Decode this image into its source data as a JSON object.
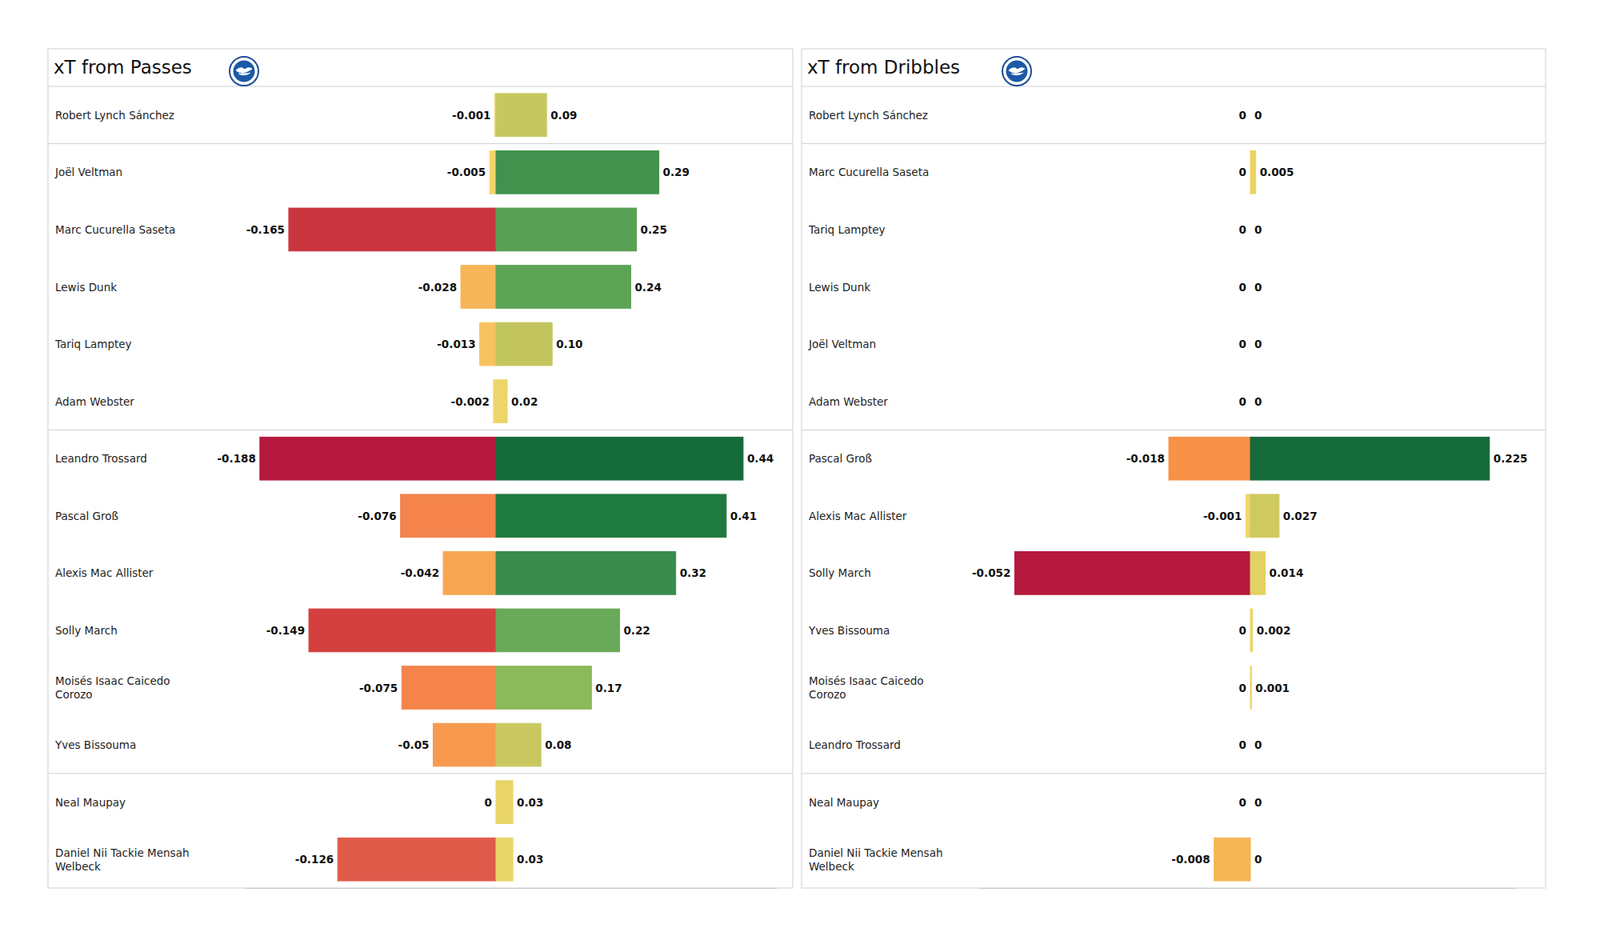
{
  "chart_data": [
    {
      "type": "bar",
      "title": "xT from Passes",
      "orientation": "horizontal",
      "data_labels": true,
      "tick_labels": false,
      "categories": [
        "Robert Lynch Sánchez",
        "Joël Veltman",
        "Marc Cucurella Saseta",
        "Lewis Dunk",
        "Tariq Lamptey",
        "Adam Webster",
        "Leandro Trossard",
        "Pascal Groß",
        "Alexis Mac Allister",
        "Solly March",
        "Moisés Isaac Caicedo Corozo",
        "Yves Bissouma",
        "Neal Maupay",
        "Daniel Nii Tackie Mensah Welbeck"
      ],
      "ylim": [
        0,
        0.5
      ],
      "y2lim": [
        -0.2,
        0
      ],
      "series": [
        {
          "axis": "y2",
          "values": [
            -0.001,
            -0.005,
            -0.165,
            -0.028,
            -0.013,
            -0.002,
            -0.188,
            -0.076,
            -0.042,
            -0.149,
            -0.075,
            -0.05,
            0,
            -0.126
          ],
          "colors": [
            "#f4d56a",
            "#f4d56a",
            "#c9353f",
            "#f6b558",
            "#f7c260",
            "#f4d56a",
            "#b5193e",
            "#f4844c",
            "#f6a650",
            "#d43f3f",
            "#f5844c",
            "#f79a50",
            "#f3d66a",
            "#e05a4a"
          ]
        },
        {
          "values": [
            0.09,
            0.29,
            0.25,
            0.24,
            0.1,
            0.02,
            0.44,
            0.41,
            0.32,
            0.22,
            0.17,
            0.08,
            0.03,
            0.03
          ],
          "value_labels": [
            "0.09",
            "0.29",
            "0.25",
            "0.24",
            "0.10",
            "0.02",
            "0.44",
            "0.41",
            "0.32",
            "0.22",
            "0.17",
            "0.08",
            "0.03",
            "0.03"
          ],
          "colors": [
            "#c6c75e",
            "#42924e",
            "#58a054",
            "#5da456",
            "#c2c55e",
            "#ecd56a",
            "#166b3a",
            "#1e7a3f",
            "#3b8b4c",
            "#68aa58",
            "#8cb95b",
            "#c9c860",
            "#e8d468",
            "#e8d468"
          ]
        }
      ]
    },
    {
      "type": "bar",
      "title": "xT from Dribbles",
      "orientation": "horizontal",
      "data_labels": true,
      "tick_labels": false,
      "categories": [
        "Robert Lynch Sánchez",
        "Marc Cucurella Saseta",
        "Tariq Lamptey",
        "Lewis Dunk",
        "Joël Veltman",
        "Adam Webster",
        "Pascal Groß",
        "Alexis Mac Allister",
        "Solly March",
        "Yves Bissouma",
        "Moisés Isaac Caicedo Corozo",
        "Leandro Trossard",
        "Neal Maupay",
        "Daniel Nii Tackie Mensah Welbeck"
      ],
      "ylim": [
        0,
        0.25
      ],
      "y2lim": [
        -0.06,
        0
      ],
      "series": [
        {
          "axis": "y2",
          "values": [
            0,
            0,
            0,
            0,
            0,
            0,
            -0.018,
            -0.001,
            -0.052,
            0,
            0,
            0,
            0,
            -0.008
          ],
          "colors": [
            "#f3d66a",
            "#f3d66a",
            "#f3d66a",
            "#f3d66a",
            "#f3d66a",
            "#f3d66a",
            "#f79248",
            "#f3d66a",
            "#b5193e",
            "#f3d66a",
            "#f3d66a",
            "#f3d66a",
            "#f3d66a",
            "#f6b653"
          ]
        },
        {
          "values": [
            0,
            0.005,
            0,
            0,
            0,
            0,
            0.225,
            0.027,
            0.014,
            0.002,
            0.001,
            0,
            0,
            0
          ],
          "colors": [
            "#edd466",
            "#ecd360",
            "#edd466",
            "#edd466",
            "#edd466",
            "#edd466",
            "#166b3a",
            "#cfca60",
            "#e3d163",
            "#ecd466",
            "#ecd466",
            "#edd466",
            "#edd466",
            "#edd466"
          ]
        }
      ]
    }
  ]
}
